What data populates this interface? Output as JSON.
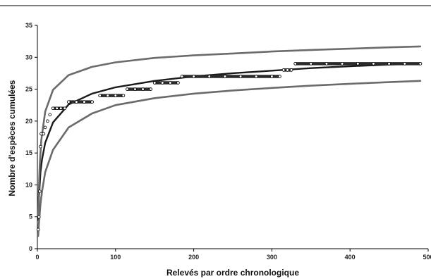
{
  "chart_data": {
    "type": "scatter",
    "xlabel": "Relevés par ordre chronologique",
    "ylabel": "Nombre d'espèces cumulées",
    "xlim": [
      0,
      500
    ],
    "ylim": [
      0,
      35
    ],
    "x_ticks": [
      "0",
      "100",
      "200",
      "300",
      "400",
      "500"
    ],
    "y_ticks": [
      "0",
      "5",
      "10",
      "15",
      "20",
      "25",
      "30",
      "35"
    ],
    "grid": false,
    "legend": "none",
    "points": [
      [
        1,
        3
      ],
      [
        2,
        5
      ],
      [
        3,
        9
      ],
      [
        4,
        16
      ],
      [
        5,
        18
      ],
      [
        8,
        18
      ],
      [
        10,
        19
      ],
      [
        13,
        20
      ],
      [
        16,
        21
      ],
      [
        20,
        22
      ],
      [
        25,
        22
      ],
      [
        30,
        22
      ],
      [
        35,
        22
      ],
      [
        40,
        23
      ],
      [
        50,
        23
      ],
      [
        60,
        23
      ],
      [
        70,
        23
      ],
      [
        80,
        24
      ],
      [
        90,
        24
      ],
      [
        100,
        24
      ],
      [
        110,
        24
      ],
      [
        115,
        25
      ],
      [
        125,
        25
      ],
      [
        135,
        25
      ],
      [
        145,
        25
      ],
      [
        150,
        26
      ],
      [
        160,
        26
      ],
      [
        170,
        26
      ],
      [
        180,
        26
      ],
      [
        185,
        27
      ],
      [
        200,
        27
      ],
      [
        220,
        27
      ],
      [
        240,
        27
      ],
      [
        260,
        27
      ],
      [
        280,
        27
      ],
      [
        300,
        27
      ],
      [
        310,
        27
      ],
      [
        315,
        28
      ],
      [
        320,
        28
      ],
      [
        325,
        28
      ],
      [
        330,
        29
      ],
      [
        350,
        29
      ],
      [
        370,
        29
      ],
      [
        390,
        29
      ],
      [
        410,
        29
      ],
      [
        430,
        29
      ],
      [
        450,
        29
      ],
      [
        470,
        29
      ],
      [
        490,
        29
      ]
    ],
    "curves": [
      {
        "role": "fit",
        "color": "#1a1a1a",
        "points": [
          [
            1,
            4.5
          ],
          [
            2,
            8
          ],
          [
            4,
            12
          ],
          [
            6,
            14
          ],
          [
            10,
            16.6
          ],
          [
            20,
            19.8
          ],
          [
            40,
            22.6
          ],
          [
            70,
            24.3
          ],
          [
            100,
            25.3
          ],
          [
            150,
            26.3
          ],
          [
            200,
            27
          ],
          [
            250,
            27.5
          ],
          [
            300,
            27.9
          ],
          [
            350,
            28.3
          ],
          [
            400,
            28.6
          ],
          [
            450,
            28.85
          ],
          [
            490,
            29
          ]
        ]
      },
      {
        "role": "upper",
        "color": "#6b6b6b",
        "points": [
          [
            1,
            5
          ],
          [
            2,
            9.5
          ],
          [
            3,
            13
          ],
          [
            5,
            17
          ],
          [
            10,
            21.5
          ],
          [
            20,
            24.9
          ],
          [
            40,
            27.2
          ],
          [
            70,
            28.5
          ],
          [
            100,
            29.2
          ],
          [
            150,
            29.9
          ],
          [
            200,
            30.3
          ],
          [
            250,
            30.6
          ],
          [
            300,
            30.9
          ],
          [
            350,
            31.15
          ],
          [
            400,
            31.35
          ],
          [
            450,
            31.55
          ],
          [
            490,
            31.7
          ]
        ]
      },
      {
        "role": "lower",
        "color": "#6b6b6b",
        "points": [
          [
            1,
            2
          ],
          [
            2,
            4
          ],
          [
            4,
            7
          ],
          [
            6,
            9
          ],
          [
            10,
            12
          ],
          [
            20,
            15.5
          ],
          [
            40,
            19
          ],
          [
            70,
            21.2
          ],
          [
            100,
            22.5
          ],
          [
            150,
            23.6
          ],
          [
            200,
            24.3
          ],
          [
            250,
            24.8
          ],
          [
            300,
            25.2
          ],
          [
            350,
            25.55
          ],
          [
            400,
            25.85
          ],
          [
            450,
            26.1
          ],
          [
            490,
            26.3
          ]
        ]
      }
    ]
  }
}
